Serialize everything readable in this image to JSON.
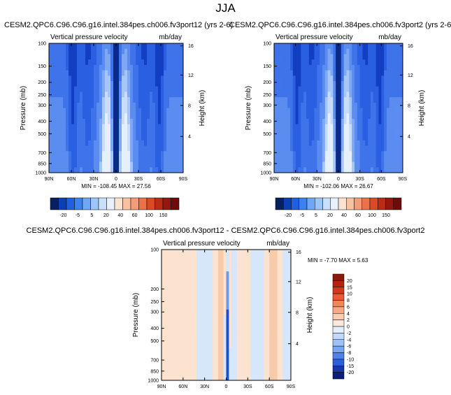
{
  "page": {
    "title": "JJA"
  },
  "panels": [
    {
      "title": "CESM2.QPC6.C96.C96.g16.intel.384pes.ch006.fv3port12 (yrs 2-6)",
      "variable": "Vertical pressure velocity",
      "units": "mb/day",
      "stats": "MIN = -108.45  MAX = 27.56",
      "left_label": "Pressure (mb)",
      "right_label": "Height (km)"
    },
    {
      "title": "CESM2.QPC6.C96.C96.g16.intel.384pes.ch006.fv3port2 (yrs 2-6)",
      "variable": "Vertical pressure velocity",
      "units": "mb/day",
      "stats": "MIN = -102.06  MAX = 26.67",
      "left_label": "Pressure (mb)",
      "right_label": "Height (km)"
    },
    {
      "title": "CESM2.QPC6.C96.C96.g16.intel.384pes.ch006.fv3port12 - CESM2.QPC6.C96.C96.g16.intel.384pes.ch006.fv3port2",
      "variable": "Vertical pressure velocity",
      "units": "mb/day",
      "stats": "MIN = -7.70  MAX =  5.63",
      "left_label": "Pressure (mb)",
      "right_label": "Height (km)"
    }
  ],
  "chart_data": [
    {
      "type": "heatmap",
      "panel": "fv3port12",
      "x_ticks": [
        "90N",
        "60N",
        "30N",
        "0",
        "30S",
        "60S",
        "90S"
      ],
      "y_ticks": [
        100,
        150,
        200,
        250,
        300,
        400,
        500,
        700,
        850,
        1000
      ],
      "y_scale": "log",
      "y2_ticks": [
        4,
        8,
        12,
        16
      ],
      "colorbar_labels": [
        "-20",
        "-5",
        "5",
        "20",
        "40",
        "60",
        "100",
        "150"
      ],
      "colorbar_colors": [
        "#08205e",
        "#0a3fb5",
        "#1f5fe0",
        "#3d80f0",
        "#6fa6f7",
        "#9cc6f9",
        "#c8e0fb",
        "#e8f1fd",
        "#fbe3d2",
        "#f8c1a2",
        "#f39c77",
        "#ec7148",
        "#dc4a25",
        "#bd2a15",
        "#961610",
        "#6e0c0c"
      ],
      "min": -108.45,
      "max": 27.56
    },
    {
      "type": "heatmap",
      "panel": "fv3port2",
      "x_ticks": [
        "90N",
        "60N",
        "30N",
        "0",
        "30S",
        "60S",
        "90S"
      ],
      "y_ticks": [
        100,
        150,
        200,
        250,
        300,
        400,
        500,
        700,
        850,
        1000
      ],
      "y_scale": "log",
      "y2_ticks": [
        4,
        8,
        12,
        16
      ],
      "colorbar_labels": [
        "-20",
        "-5",
        "5",
        "20",
        "40",
        "60",
        "100",
        "150"
      ],
      "min": -102.06,
      "max": 26.67
    },
    {
      "type": "heatmap",
      "panel": "difference",
      "x_ticks": [
        "90N",
        "60N",
        "30N",
        "0",
        "30S",
        "60S",
        "90S"
      ],
      "y_ticks": [
        100,
        200,
        250,
        300,
        400,
        500,
        700,
        850,
        1000
      ],
      "y_scale": "log",
      "y2_ticks": [
        4,
        8,
        12,
        16
      ],
      "colorbar_labels": [
        "20",
        "15",
        "10",
        "8",
        "6",
        "4",
        "2",
        "0",
        "-2",
        "-4",
        "-6",
        "-8",
        "-10",
        "-15",
        "-20"
      ],
      "colorbar_colors": [
        "#8b1a0a",
        "#b8220f",
        "#d6371c",
        "#ec5a34",
        "#f58559",
        "#f8a882",
        "#fbcdb0",
        "#fce8dc",
        "#e2eefc",
        "#c2d9fa",
        "#9ec1f6",
        "#79a6f1",
        "#4f83e8",
        "#2a5fd6",
        "#1637a8",
        "#0c1d7c"
      ],
      "min": -7.7,
      "max": 5.63
    }
  ]
}
